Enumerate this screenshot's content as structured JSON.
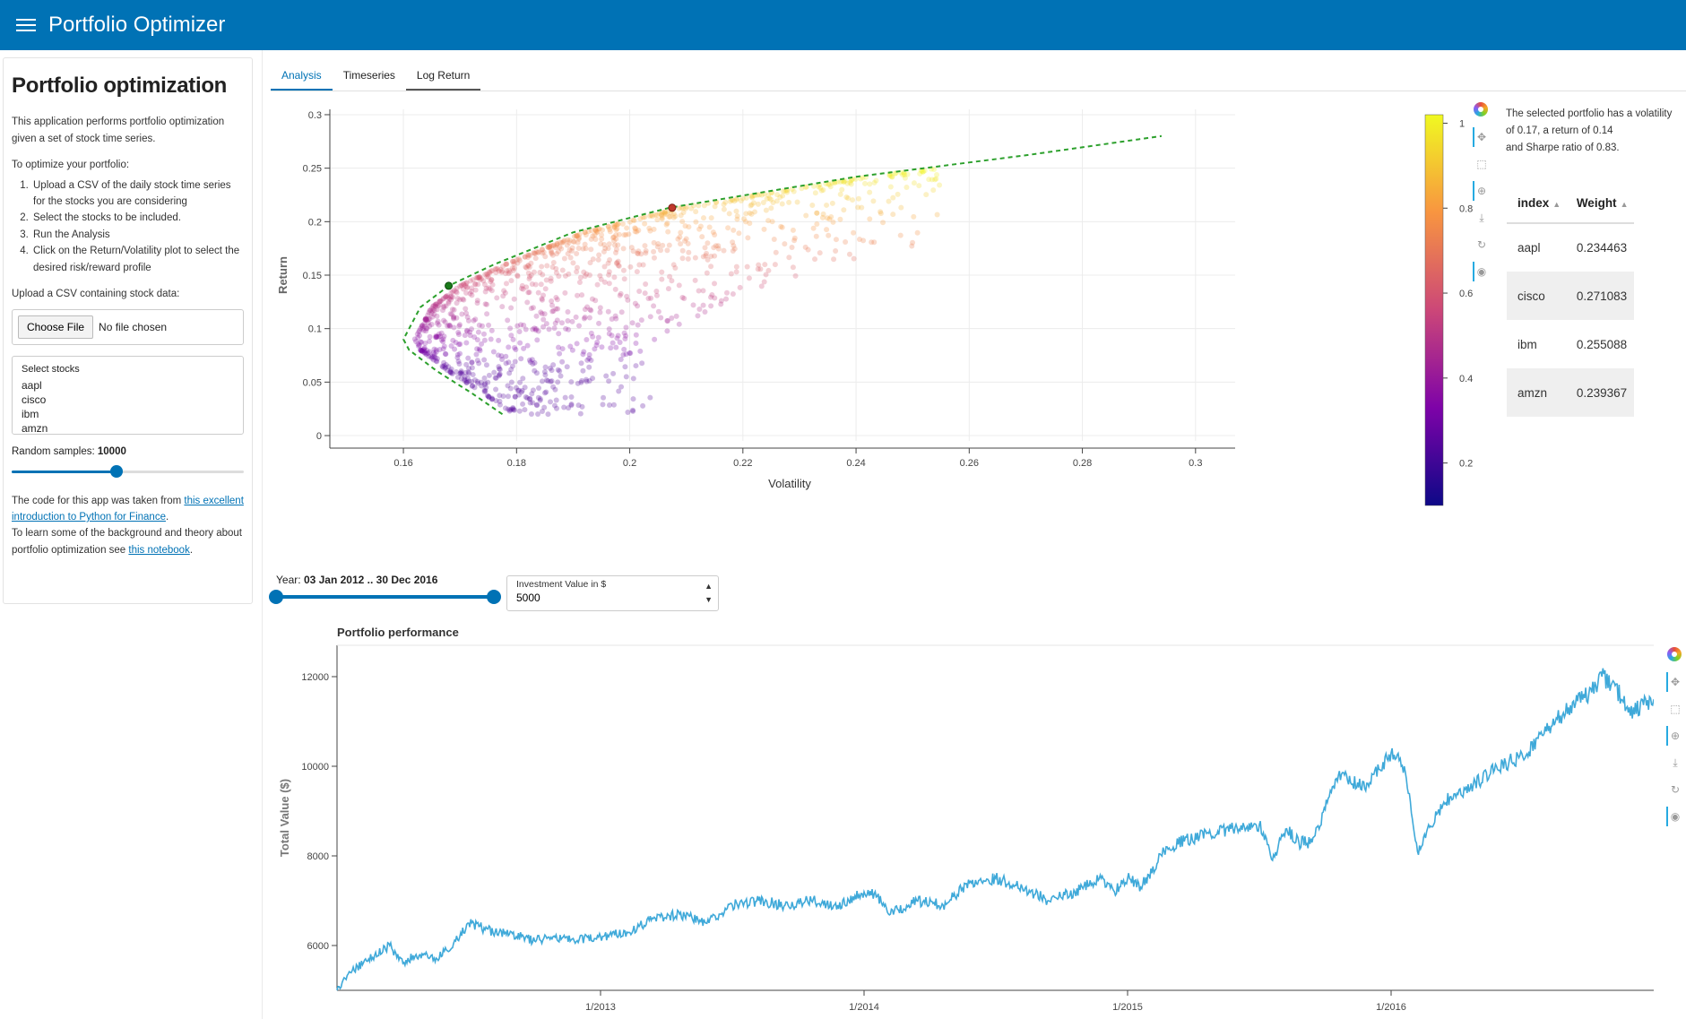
{
  "app": {
    "title": "Portfolio Optimizer"
  },
  "sidebar": {
    "title": "Portfolio optimization",
    "intro": "This application performs portfolio optimization given a set of stock time series.",
    "instructions_heading": "To optimize your portfolio:",
    "steps": [
      "Upload a CSV of the daily stock time series for the stocks you are considering",
      "Select the stocks to be included.",
      "Run the Analysis",
      "Click on the Return/Volatility plot to select the desired risk/reward profile"
    ],
    "upload_label": "Upload a CSV containing stock data:",
    "file_button": "Choose File",
    "file_status": "No file chosen",
    "stocks_label": "Select stocks",
    "stocks": [
      "aapl",
      "cisco",
      "ibm",
      "amzn"
    ],
    "samples_label": "Random samples:",
    "samples_value": "10000",
    "samples_fraction": 0.45,
    "footer_1": "The code for this app was taken from ",
    "footer_link_1": "this excellent introduction to Python for Finance",
    "footer_2": ".",
    "footer_3": "To learn some of the background and theory about portfolio optimization see ",
    "footer_link_2": "this notebook",
    "footer_4": "."
  },
  "tabs": [
    "Analysis",
    "Timeseries",
    "Log Return"
  ],
  "selection": {
    "line1": "The selected portfolio has a volatility of 0.17, a return of 0.14",
    "line2": "and Sharpe ratio of 0.83."
  },
  "weights_table": {
    "headers": [
      "index",
      "Weight"
    ],
    "rows": [
      [
        "aapl",
        "0.234463"
      ],
      [
        "cisco",
        "0.271083"
      ],
      [
        "ibm",
        "0.255088"
      ],
      [
        "amzn",
        "0.239367"
      ]
    ]
  },
  "year_range": {
    "label": "Year:",
    "value": "03 Jan 2012 .. 30 Dec 2016",
    "start_fraction": 0,
    "end_fraction": 1
  },
  "investment": {
    "label": "Investment Value in $",
    "value": "5000"
  },
  "colors": {
    "accent": "#0072b5",
    "frontier": "#2ca02c",
    "line": "#3fa9d9"
  },
  "chart_data": [
    {
      "type": "scatter",
      "xlabel": "Volatility",
      "ylabel": "Return",
      "xlim": [
        0.147,
        0.307
      ],
      "ylim": [
        -0.005,
        0.305
      ],
      "x_ticks": [
        0.16,
        0.18,
        0.2,
        0.22,
        0.24,
        0.26,
        0.28,
        0.3
      ],
      "y_ticks": [
        0,
        0.05,
        0.1,
        0.15,
        0.2,
        0.25,
        0.3
      ],
      "frontier": [
        [
          0.1775,
          0.02
        ],
        [
          0.172,
          0.04
        ],
        [
          0.166,
          0.06
        ],
        [
          0.161,
          0.08
        ],
        [
          0.16,
          0.09
        ],
        [
          0.161,
          0.1
        ],
        [
          0.163,
          0.12
        ],
        [
          0.168,
          0.14
        ],
        [
          0.176,
          0.16
        ],
        [
          0.19,
          0.19
        ],
        [
          0.207,
          0.213
        ],
        [
          0.24,
          0.242
        ],
        [
          0.27,
          0.262
        ],
        [
          0.294,
          0.28
        ]
      ],
      "selected_points": [
        [
          0.168,
          0.14
        ],
        [
          0.2075,
          0.213
        ]
      ],
      "samples": 10000,
      "colorbar": {
        "ticks": [
          0.2,
          0.4,
          0.6,
          0.8,
          1
        ],
        "range": [
          0.1,
          1.02
        ]
      },
      "grid": true
    },
    {
      "type": "line",
      "title": "Portfolio performance",
      "ylabel": "Total Value ($)",
      "x_ticks": [
        "1/2013",
        "1/2014",
        "1/2015",
        "1/2016"
      ],
      "y_ticks": [
        6000,
        8000,
        10000,
        12000
      ],
      "xlim": [
        2012.0,
        2017.0
      ],
      "ylim": [
        5000,
        12700
      ],
      "series": [
        {
          "x": [
            2012.0,
            2012.05,
            2012.12,
            2012.2,
            2012.25,
            2012.3,
            2012.38,
            2012.45,
            2012.5,
            2012.6,
            2012.7,
            2012.75,
            2012.82,
            2012.9,
            2013.0,
            2013.1,
            2013.2,
            2013.3,
            2013.4,
            2013.45,
            2013.5,
            2013.6,
            2013.7,
            2013.8,
            2013.9,
            2014.0,
            2014.05,
            2014.1,
            2014.2,
            2014.3,
            2014.4,
            2014.5,
            2014.6,
            2014.7,
            2014.8,
            2014.9,
            2014.95,
            2015.0,
            2015.05,
            2015.15,
            2015.3,
            2015.4,
            2015.5,
            2015.55,
            2015.6,
            2015.65,
            2015.7,
            2015.8,
            2015.9,
            2016.0,
            2016.05,
            2016.1,
            2016.2,
            2016.3,
            2016.4,
            2016.5,
            2016.6,
            2016.7,
            2016.75,
            2016.8,
            2016.85,
            2016.9,
            2017.0
          ],
          "values": [
            5000,
            5400,
            5700,
            6000,
            5600,
            5800,
            5700,
            6100,
            6500,
            6300,
            6200,
            6100,
            6200,
            6100,
            6200,
            6300,
            6600,
            6700,
            6500,
            6700,
            6900,
            7000,
            6900,
            7000,
            6900,
            7200,
            7100,
            6700,
            7000,
            6900,
            7400,
            7500,
            7300,
            7000,
            7200,
            7500,
            7200,
            7500,
            7300,
            8200,
            8500,
            8600,
            8700,
            7900,
            8600,
            8300,
            8300,
            9800,
            9500,
            10300,
            10000,
            8100,
            9200,
            9500,
            10000,
            10200,
            10900,
            11400,
            11600,
            12000,
            11800,
            11200,
            11500
          ]
        }
      ],
      "grid": false
    }
  ]
}
